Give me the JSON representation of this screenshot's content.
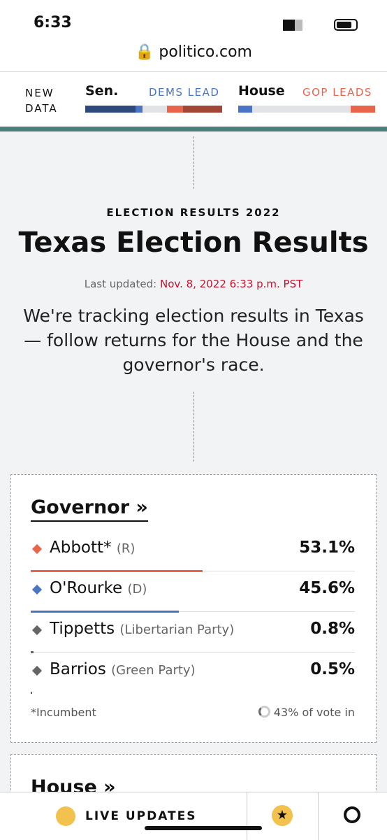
{
  "status_bar": {
    "time": "6:33",
    "url": "politico.com"
  },
  "header": {
    "new_data": "NEW DATA",
    "senate": "Sen.",
    "dems_lead": "DEMS LEAD",
    "house": "House",
    "gop_leads": "GOP LEADS"
  },
  "article": {
    "kicker": "ELECTION RESULTS 2022",
    "title": "Texas Election Results",
    "updated_label": "Last updated:",
    "updated_date": "Nov. 8, 2022 6:33 p.m. PST",
    "description": "We're tracking election results in Texas — follow returns for the House and the governor's race."
  },
  "governor": {
    "heading": "Governor »",
    "candidates": [
      {
        "name": "Abbott*",
        "party": "(R)",
        "pct": 53.1,
        "pct_label": "53.1%",
        "color": "#e8644a"
      },
      {
        "name": "O'Rourke",
        "party": "(D)",
        "pct": 45.6,
        "pct_label": "45.6%",
        "color": "#4a75c4"
      },
      {
        "name": "Tippetts",
        "party": "(Libertarian Party)",
        "pct": 0.8,
        "pct_label": "0.8%",
        "color": "#666666"
      },
      {
        "name": "Barrios",
        "party": "(Green Party)",
        "pct": 0.5,
        "pct_label": "0.5%",
        "color": "#666666"
      }
    ],
    "footnote": "*Incumbent",
    "reporting": "43% of vote in"
  },
  "house": {
    "heading": "House »"
  },
  "bottom_bar": {
    "live_updates": "LIVE UPDATES"
  }
}
